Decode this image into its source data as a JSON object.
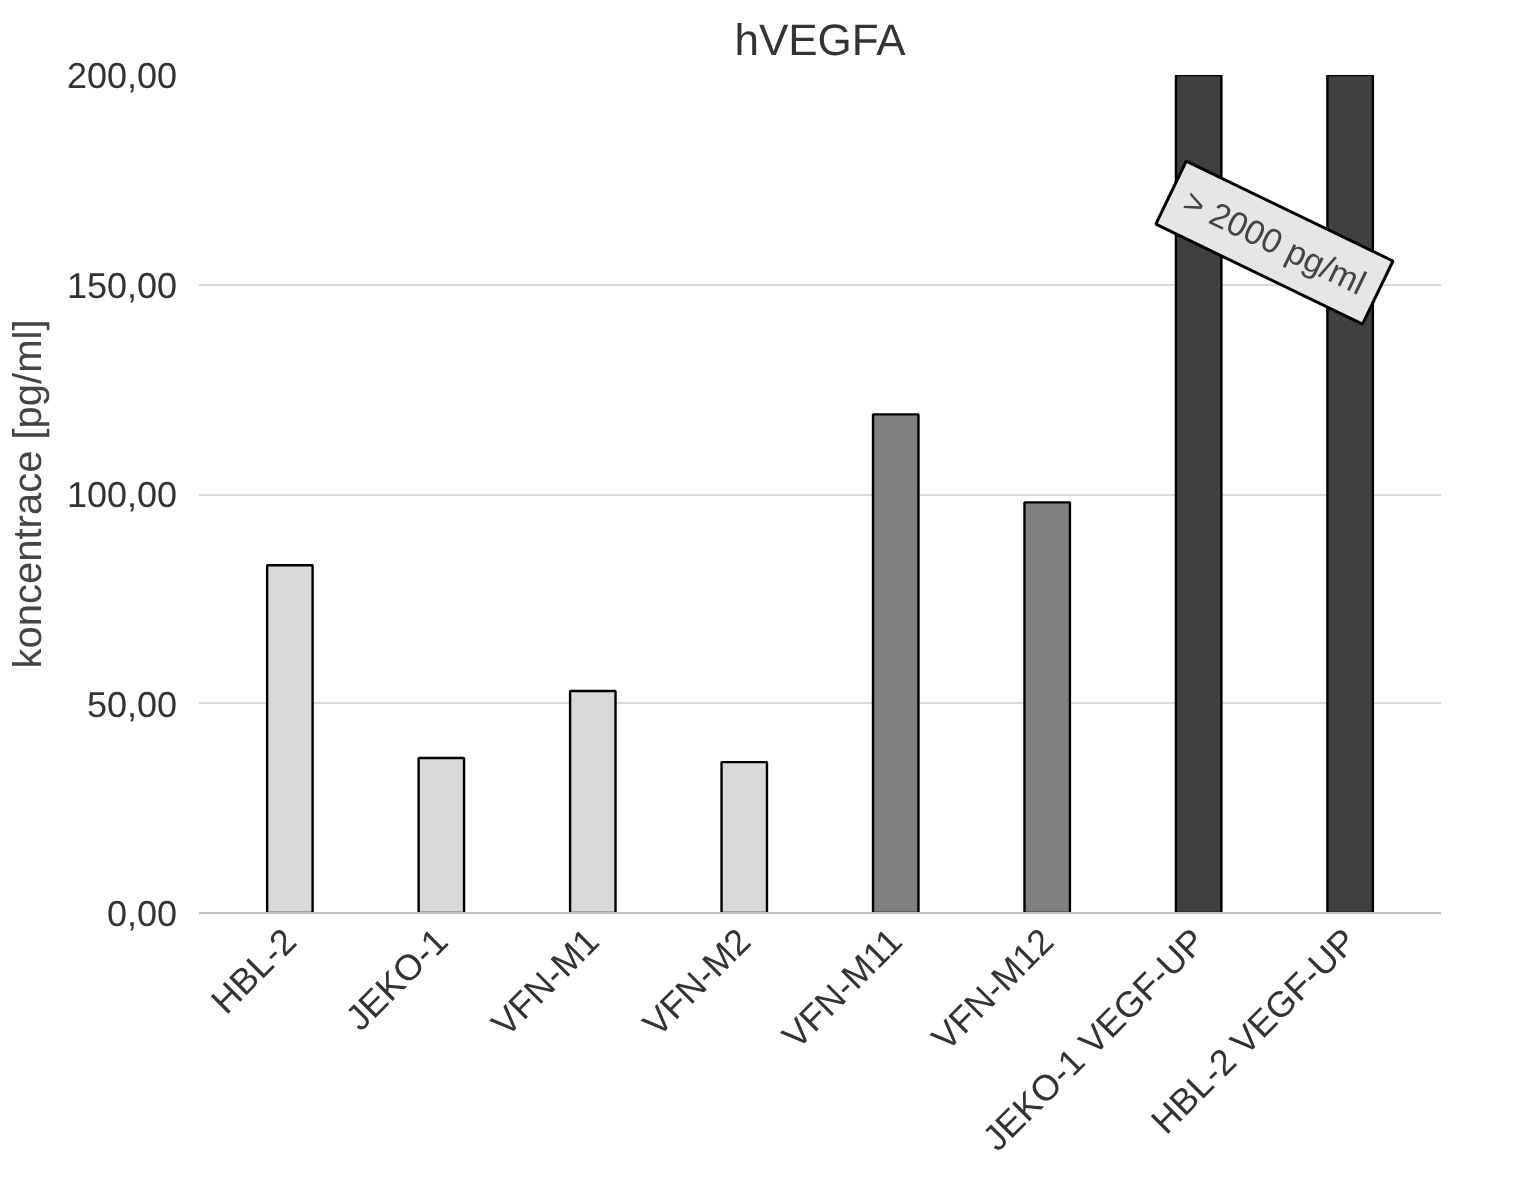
{
  "chart_data": {
    "type": "bar",
    "title": "hVEGFA",
    "ylabel": "koncentrace [pg/ml]",
    "categories": [
      "HBL-2",
      "JEKO-1",
      "VFN-M1",
      "VFN-M2",
      "VFN-M11",
      "VFN-M12",
      "JEKO-1 VEGF-UP",
      "HBL-2 VEGF-UP"
    ],
    "values": [
      83,
      37,
      53,
      36,
      119,
      98,
      200,
      200
    ],
    "colors": [
      "#d9d9d9",
      "#d9d9d9",
      "#d9d9d9",
      "#d9d9d9",
      "#808080",
      "#808080",
      "#404040",
      "#404040"
    ],
    "ylim": [
      0,
      200
    ],
    "yticks": [
      {
        "value": 0,
        "label": "0,00"
      },
      {
        "value": 50,
        "label": "50,00"
      },
      {
        "value": 100,
        "label": "100,00"
      },
      {
        "value": 150,
        "label": "150,00"
      },
      {
        "value": 200,
        "label": "200,00"
      }
    ],
    "grid": "y",
    "annotations": [
      "> 2000 pg/ml"
    ]
  }
}
